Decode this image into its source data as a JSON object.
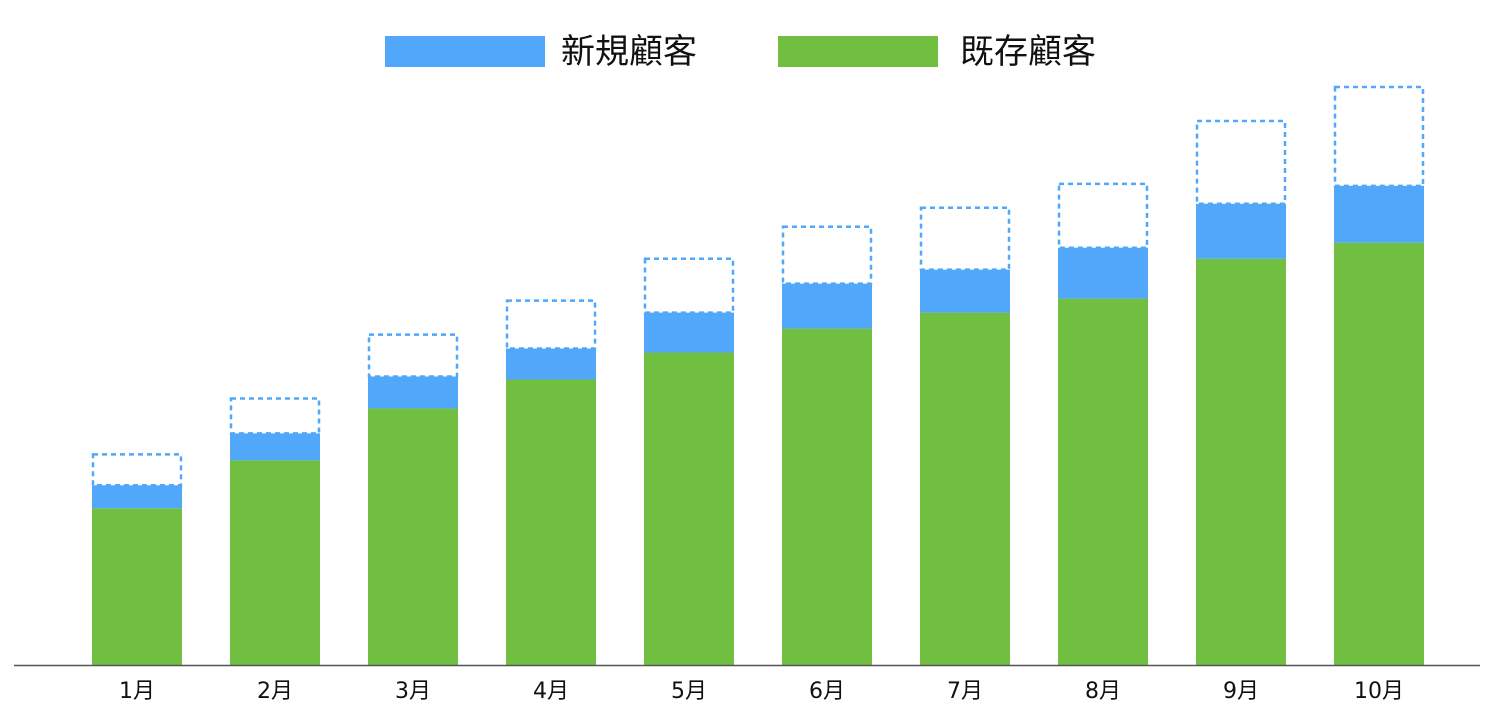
{
  "chart_data": {
    "type": "bar",
    "stacked": true,
    "categories": [
      "1月",
      "2月",
      "3月",
      "4月",
      "5月",
      "6月",
      "7月",
      "8月",
      "9月",
      "10月"
    ],
    "series": [
      {
        "name": "既存顧客",
        "color": "#70bf41",
        "values": [
          157,
          205,
          257,
          286,
          313,
          337,
          353,
          367,
          407,
          423
        ]
      },
      {
        "name": "新規顧客",
        "color": "#51a7f9",
        "values": [
          23,
          27,
          32,
          31,
          40,
          45,
          43,
          51,
          55,
          57
        ]
      }
    ],
    "targets": {
      "description_visible": false,
      "style": "dashed",
      "color": "#51a7f9",
      "values": [
        211,
        267,
        331,
        365,
        407,
        439,
        458,
        482,
        545,
        579
      ]
    },
    "legend_position": "top-center",
    "grid": false,
    "ylim": [
      0,
      600
    ],
    "xlabel": "",
    "ylabel": ""
  }
}
